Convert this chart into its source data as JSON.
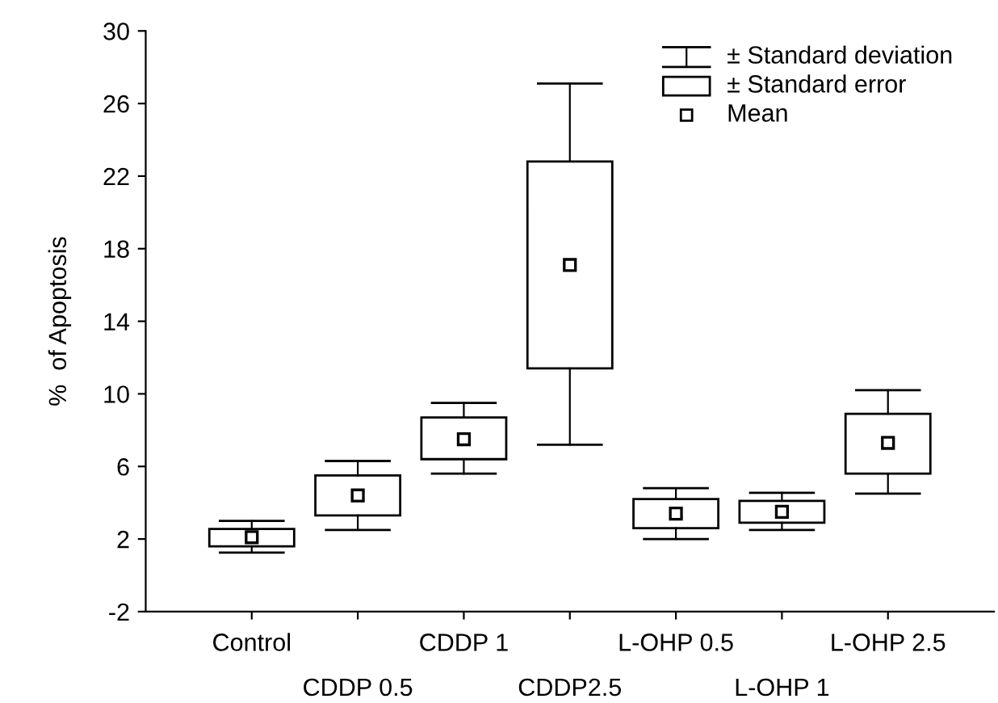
{
  "chart_data": {
    "type": "box",
    "ylabel": "%  of Apoptosis",
    "categories": [
      "Control",
      "CDDP 0.5",
      "CDDP 1",
      "CDDP2.5",
      "L-OHP 0.5",
      "L-OHP 1",
      "L-OHP 2.5"
    ],
    "boxes": [
      {
        "low": 1.25,
        "q1": 1.6,
        "q3": 2.55,
        "high": 3.0,
        "mean": 2.1
      },
      {
        "low": 2.5,
        "q1": 3.3,
        "q3": 5.5,
        "high": 6.3,
        "mean": 4.4
      },
      {
        "low": 5.6,
        "q1": 6.4,
        "q3": 8.7,
        "high": 9.5,
        "mean": 7.5
      },
      {
        "low": 7.2,
        "q1": 11.4,
        "q3": 22.8,
        "high": 27.1,
        "mean": 17.1
      },
      {
        "low": 2.0,
        "q1": 2.6,
        "q3": 4.2,
        "high": 4.8,
        "mean": 3.4
      },
      {
        "low": 2.5,
        "q1": 2.9,
        "q3": 4.1,
        "high": 4.55,
        "mean": 3.5
      },
      {
        "low": 4.5,
        "q1": 5.6,
        "q3": 8.9,
        "high": 10.2,
        "mean": 7.3
      }
    ],
    "color": "#000000",
    "ylim": [
      -2,
      30
    ],
    "yticks": [
      -2,
      2,
      6,
      10,
      14,
      18,
      22,
      26,
      30
    ],
    "annotations": [
      "± Standard deviation",
      "± Standard error",
      "Mean"
    ],
    "grid": false,
    "marker": "square"
  }
}
